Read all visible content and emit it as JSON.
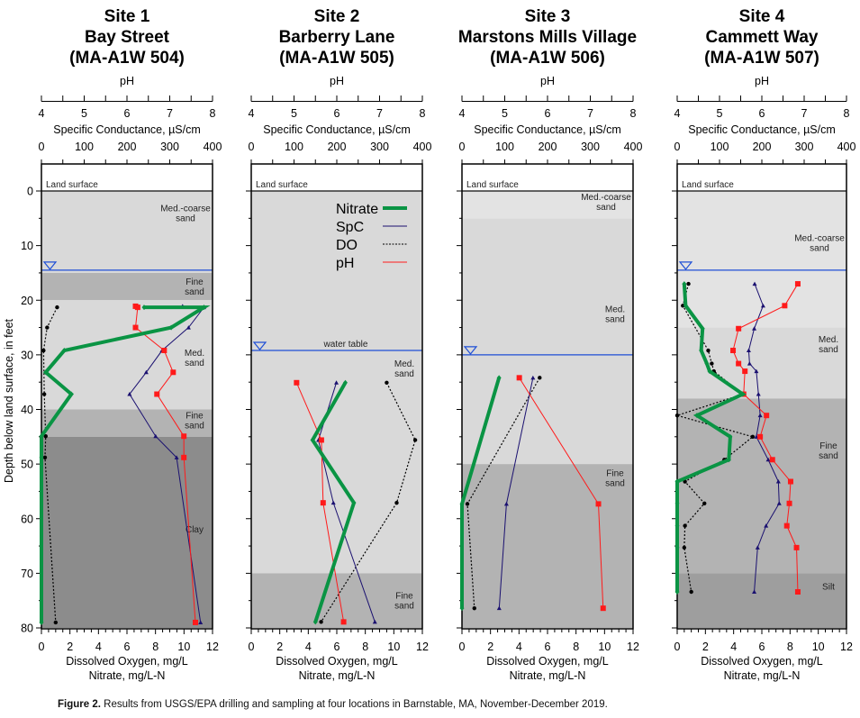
{
  "caption": {
    "label": "Figure 2.",
    "text": " Results from USGS/EPA drilling and sampling at four locations in Barnstable, MA,  November-December 2019."
  },
  "chart_data": {
    "type": "line",
    "y_axis": {
      "label": "Depth below land surface, in feet",
      "range": [
        80,
        0
      ],
      "ticks": [
        0,
        10,
        20,
        30,
        40,
        50,
        60,
        70,
        80
      ],
      "inverted": true
    },
    "top_axes": [
      {
        "label": "pH",
        "range": [
          4,
          8
        ],
        "ticks": [
          4,
          5,
          6,
          7,
          8
        ]
      },
      {
        "label": "Specific Conductance, µS/cm",
        "range": [
          0,
          400
        ],
        "ticks": [
          0,
          100,
          200,
          300,
          400
        ]
      }
    ],
    "bottom_axis": {
      "label1": "Dissolved Oxygen, mg/L",
      "label2": "Nitrate, mg/L-N",
      "range": [
        0,
        12
      ],
      "ticks": [
        0,
        2,
        4,
        6,
        8,
        10,
        12
      ]
    },
    "land_surface_label": "Land surface",
    "water_table_label": "water table",
    "legend": {
      "placement": "site-2-top-right",
      "entries": [
        {
          "name": "Nitrate",
          "color": "#0a9444",
          "style": "thick"
        },
        {
          "name": "SpC",
          "color": "#1a1070",
          "style": "solid"
        },
        {
          "name": "DO",
          "color": "#000000",
          "style": "dotted"
        },
        {
          "name": "pH",
          "color": "#ff1a1a",
          "style": "solid"
        }
      ]
    },
    "colors": {
      "nitrate": "#0a9444",
      "spc": "#1a1070",
      "do": "#000000",
      "ph": "#ff1a1a",
      "water_table": "#1f4fd6"
    },
    "sites": [
      {
        "title": [
          "Site 1",
          "Bay Street",
          "(MA-A1W 504)"
        ],
        "water_table_depth": 14.5,
        "layers": [
          {
            "top": 0,
            "bottom": 15,
            "label": "Med.-coarse sand",
            "color": "#d9d9d9"
          },
          {
            "top": 15,
            "bottom": 20,
            "label": "Fine sand",
            "color": "#b3b3b3"
          },
          {
            "top": 20,
            "bottom": 40,
            "label": "Med. sand",
            "color": "#d9d9d9"
          },
          {
            "top": 40,
            "bottom": 45,
            "label": "Fine sand",
            "color": "#b3b3b3"
          },
          {
            "top": 45,
            "bottom": 80,
            "label": "Clay",
            "color": "#8c8c8c"
          }
        ],
        "nitrate": [
          [
            21.3,
            7.2
          ],
          [
            21.3,
            11.4
          ],
          [
            25,
            9.1
          ],
          [
            29.2,
            1.6
          ],
          [
            33.2,
            0.3
          ],
          [
            37.2,
            2.1
          ],
          [
            44.9,
            0
          ],
          [
            48.8,
            0
          ],
          [
            79,
            0
          ]
        ],
        "do": [
          [
            21.3,
            1.1
          ],
          [
            25,
            0.4
          ],
          [
            29.2,
            0.15
          ],
          [
            37.2,
            0.2
          ],
          [
            44.9,
            0.3
          ],
          [
            48.8,
            0.25
          ],
          [
            79,
            1.0
          ]
        ],
        "spc": [
          [
            21.1,
            330
          ],
          [
            21.3,
            380
          ],
          [
            25,
            344
          ],
          [
            29.2,
            282
          ],
          [
            33.2,
            245
          ],
          [
            37.2,
            206
          ],
          [
            44.9,
            267
          ],
          [
            48.8,
            316
          ],
          [
            79,
            372
          ]
        ],
        "ph": [
          [
            21.1,
            6.2
          ],
          [
            21.3,
            6.25
          ],
          [
            25,
            6.2
          ],
          [
            29.2,
            6.87
          ],
          [
            33.2,
            7.08
          ],
          [
            37.2,
            6.7
          ],
          [
            44.9,
            7.33
          ],
          [
            48.8,
            7.33
          ],
          [
            79,
            7.6
          ]
        ]
      },
      {
        "title": [
          "Site 2",
          "Barberry Lane",
          "(MA-A1W 505)"
        ],
        "water_table_depth": 29.2,
        "layers": [
          {
            "top": 0,
            "bottom": 70,
            "label": "Med. sand",
            "color": "#d9d9d9"
          },
          {
            "top": 70,
            "bottom": 80,
            "label": "Fine sand",
            "color": "#b3b3b3"
          }
        ],
        "nitrate": [
          [
            35.1,
            6.6
          ],
          [
            45.6,
            4.3
          ],
          [
            57.1,
            7.2
          ],
          [
            78.9,
            4.5
          ]
        ],
        "do": [
          [
            35.1,
            9.5
          ],
          [
            45.6,
            11.5
          ],
          [
            57.1,
            10.2
          ],
          [
            78.9,
            4.9
          ]
        ],
        "spc": [
          [
            35.1,
            199
          ],
          [
            45.6,
            157
          ],
          [
            57.1,
            192
          ],
          [
            78.9,
            289
          ]
        ],
        "ph": [
          [
            35.1,
            5.06
          ],
          [
            45.6,
            5.64
          ],
          [
            57.1,
            5.68
          ],
          [
            78.9,
            6.16
          ]
        ]
      },
      {
        "title": [
          "Site 3",
          "Marstons Mills Village",
          "(MA-A1W 506)"
        ],
        "water_table_depth": 30,
        "layers": [
          {
            "top": 0,
            "bottom": 5,
            "label": "Med.-coarse sand",
            "color": "#e3e3e3"
          },
          {
            "top": 5,
            "bottom": 50,
            "label": "Med. sand",
            "color": "#d9d9d9"
          },
          {
            "top": 50,
            "bottom": 80,
            "label": "Fine sand",
            "color": "#b3b3b3"
          }
        ],
        "nitrate": [
          [
            34.2,
            2.6
          ],
          [
            57.3,
            0
          ],
          [
            76.4,
            0
          ]
        ],
        "do": [
          [
            34.2,
            5.45
          ],
          [
            57.3,
            0.38
          ],
          [
            76.4,
            0.87
          ]
        ],
        "spc": [
          [
            34.2,
            166
          ],
          [
            57.3,
            104
          ],
          [
            76.4,
            87
          ]
        ],
        "ph": [
          [
            34.2,
            5.34
          ],
          [
            57.3,
            7.19
          ],
          [
            76.4,
            7.3
          ]
        ]
      },
      {
        "title": [
          "Site 4",
          "Cammett Way",
          "(MA-A1W 507)"
        ],
        "water_table_depth": 14.5,
        "layers": [
          {
            "top": 0,
            "bottom": 25,
            "label": "Med.-coarse sand",
            "color": "#e3e3e3"
          },
          {
            "top": 25,
            "bottom": 38,
            "label": "Med. sand",
            "color": "#d9d9d9"
          },
          {
            "top": 38,
            "bottom": 70,
            "label": "Fine sand",
            "color": "#b3b3b3"
          },
          {
            "top": 70,
            "bottom": 80,
            "label": "Silt",
            "color": "#9e9e9e"
          }
        ],
        "nitrate": [
          [
            17,
            0.5
          ],
          [
            21,
            0.6
          ],
          [
            25.2,
            1.8
          ],
          [
            29.2,
            1.7
          ],
          [
            31.6,
            2.1
          ],
          [
            33,
            2.3
          ],
          [
            37.2,
            4.65
          ],
          [
            41.1,
            1.4
          ],
          [
            45,
            3.76
          ],
          [
            49.2,
            3.66
          ],
          [
            53.2,
            0
          ],
          [
            57.2,
            0
          ],
          [
            61.3,
            0
          ],
          [
            65.3,
            0
          ],
          [
            73.4,
            0
          ]
        ],
        "do": [
          [
            17,
            0.8
          ],
          [
            21,
            0.4
          ],
          [
            29.2,
            2.2
          ],
          [
            31.6,
            2.45
          ],
          [
            33,
            2.6
          ],
          [
            37.2,
            4.65
          ],
          [
            41.1,
            0
          ],
          [
            45,
            5.35
          ],
          [
            49.2,
            3.34
          ],
          [
            53.2,
            0.55
          ],
          [
            57.2,
            1.93
          ],
          [
            61.3,
            0.55
          ],
          [
            65.3,
            0.5
          ],
          [
            73.4,
            1.0
          ]
        ],
        "spc": [
          [
            17,
            183
          ],
          [
            21,
            203
          ],
          [
            25.2,
            182
          ],
          [
            29.2,
            169
          ],
          [
            31.6,
            171
          ],
          [
            33,
            187
          ],
          [
            37.2,
            192
          ],
          [
            41.1,
            196
          ],
          [
            45,
            187
          ],
          [
            49.2,
            215
          ],
          [
            53.2,
            239
          ],
          [
            57.2,
            241
          ],
          [
            61.3,
            210
          ],
          [
            65.3,
            190
          ],
          [
            73.4,
            182
          ]
        ],
        "ph": [
          [
            17,
            6.85
          ],
          [
            21,
            6.54
          ],
          [
            25.2,
            5.45
          ],
          [
            29.2,
            5.32
          ],
          [
            31.6,
            5.45
          ],
          [
            33,
            5.6
          ],
          [
            37.2,
            5.57
          ],
          [
            41.1,
            6.11
          ],
          [
            45,
            5.96
          ],
          [
            49.2,
            6.25
          ],
          [
            53.2,
            6.68
          ],
          [
            57.2,
            6.65
          ],
          [
            61.3,
            6.59
          ],
          [
            65.3,
            6.82
          ],
          [
            73.4,
            6.85
          ]
        ]
      }
    ]
  }
}
